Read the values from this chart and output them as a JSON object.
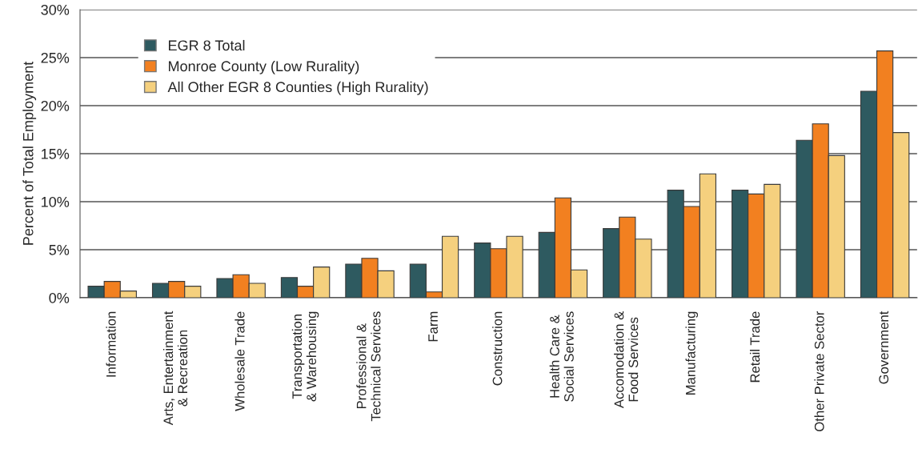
{
  "chart_data": {
    "type": "bar",
    "ylabel": "Percent of Total Employment",
    "categories": [
      "Information",
      "Arts, Entertainment\n& Recreation",
      "Wholesale Trade",
      "Transportation\n& Warehousing",
      "Professional &\nTechnical Services",
      "Farm",
      "Construction",
      "Health Care &\nSocial Services",
      "Accomodation &\nFood Services",
      "Manufacturing",
      "Retail Trade",
      "Other Private Sector",
      "Government"
    ],
    "series": [
      {
        "name": "EGR 8 Total",
        "color": "#2e5a60",
        "values": [
          1.2,
          1.5,
          2.0,
          2.1,
          3.5,
          3.5,
          5.7,
          6.8,
          7.2,
          11.2,
          11.2,
          16.4,
          21.5
        ]
      },
      {
        "name": "Monroe County (Low Rurality)",
        "color": "#f28020",
        "values": [
          1.7,
          1.7,
          2.4,
          1.2,
          4.1,
          0.6,
          5.1,
          10.4,
          8.4,
          9.5,
          10.8,
          18.1,
          25.7
        ]
      },
      {
        "name": "All Other EGR 8 Counties (High Rurality)",
        "color": "#f5d07e",
        "values": [
          0.7,
          1.2,
          1.5,
          3.2,
          2.8,
          6.4,
          6.4,
          2.9,
          6.1,
          12.9,
          11.8,
          14.8,
          17.2
        ]
      }
    ],
    "ylim": [
      0,
      30
    ],
    "yticks": [
      {
        "value": 0,
        "label": "0%"
      },
      {
        "value": 5,
        "label": "5%"
      },
      {
        "value": 10,
        "label": "10%"
      },
      {
        "value": 15,
        "label": "15%"
      },
      {
        "value": 20,
        "label": "20%"
      },
      {
        "value": 25,
        "label": "25%"
      },
      {
        "value": 30,
        "label": "30%"
      }
    ],
    "grid": "y",
    "legend": "top left"
  }
}
